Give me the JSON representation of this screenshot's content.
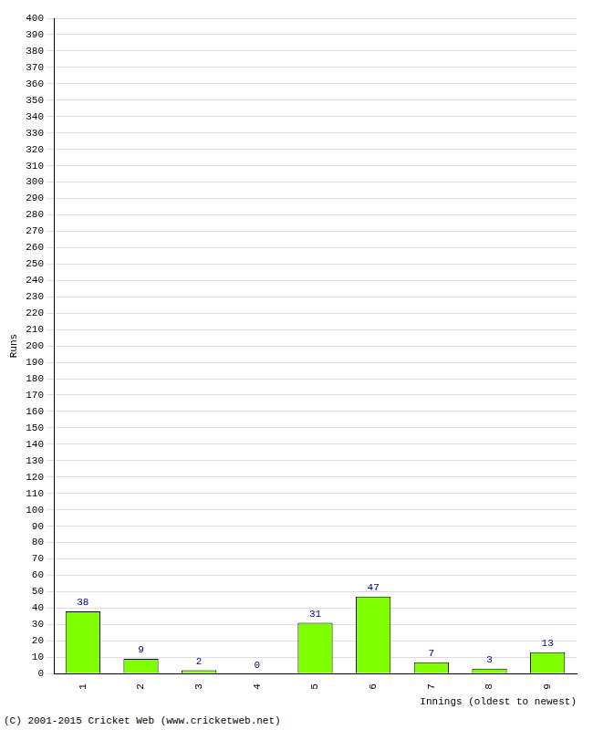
{
  "chart_data": {
    "type": "bar",
    "y_label": "Runs",
    "x_label": "Innings (oldest to newest)",
    "annotations": [
      "(C) 2001-2015 Cricket Web (www.cricketweb.net)"
    ],
    "categories": [
      "1",
      "2",
      "3",
      "4",
      "5",
      "6",
      "7",
      "8",
      "9"
    ],
    "values": [
      38,
      9,
      2,
      0,
      31,
      47,
      7,
      3,
      13
    ],
    "color": "#80ff00",
    "ylim": [
      0,
      400
    ],
    "yticks": [
      0,
      10,
      20,
      30,
      40,
      50,
      60,
      70,
      80,
      90,
      100,
      110,
      120,
      130,
      140,
      150,
      160,
      170,
      180,
      190,
      200,
      210,
      220,
      230,
      240,
      250,
      260,
      270,
      280,
      290,
      300,
      310,
      320,
      330,
      340,
      350,
      360,
      370,
      380,
      390,
      400
    ],
    "grid": true,
    "data_labels": true
  }
}
